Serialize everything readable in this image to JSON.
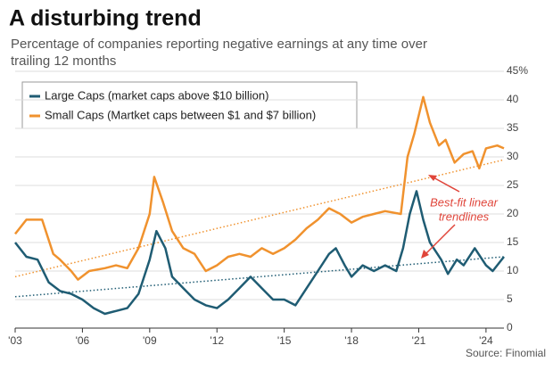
{
  "chart_data": {
    "type": "line",
    "title": "A disturbing trend",
    "subtitle": [
      "Percentage of companies reporting negative earnings at any time over",
      "trailing 12 months"
    ],
    "source": "Source: Finomial",
    "annotation": [
      "Best-fit linear",
      "trendlines"
    ],
    "xlim": [
      2003,
      2024.8
    ],
    "xticks": [
      {
        "value": 2003,
        "label": "'03"
      },
      {
        "value": 2006,
        "label": "'06"
      },
      {
        "value": 2009,
        "label": "'09"
      },
      {
        "value": 2012,
        "label": "'12"
      },
      {
        "value": 2015,
        "label": "'15"
      },
      {
        "value": 2018,
        "label": "'18"
      },
      {
        "value": 2021,
        "label": "'21"
      },
      {
        "value": 2024,
        "label": "'24"
      }
    ],
    "ylim": [
      0,
      45
    ],
    "yticks": [
      0,
      5,
      10,
      15,
      20,
      25,
      30,
      35,
      40,
      {
        "value": 45,
        "label": "45%"
      }
    ],
    "grid": true,
    "series": [
      {
        "name": "Large Caps (market caps above $10 billion)",
        "color": "#1f5c73",
        "x": [
          2003,
          2003.5,
          2004,
          2004.5,
          2005,
          2005.5,
          2006,
          2006.5,
          2007,
          2007.5,
          2008,
          2008.5,
          2009,
          2009.3,
          2009.7,
          2010,
          2010.5,
          2011,
          2011.5,
          2012,
          2012.5,
          2013,
          2013.5,
          2014,
          2014.5,
          2015,
          2015.5,
          2016,
          2016.5,
          2017,
          2017.3,
          2017.7,
          2018,
          2018.5,
          2019,
          2019.5,
          2020,
          2020.3,
          2020.6,
          2020.9,
          2021.2,
          2021.5,
          2022,
          2022.3,
          2022.7,
          2023,
          2023.5,
          2024,
          2024.3,
          2024.8
        ],
        "values": [
          15,
          12.5,
          12,
          8,
          6.5,
          6,
          5,
          3.5,
          2.5,
          3,
          3.5,
          6,
          12,
          17,
          14,
          9,
          7,
          5,
          4,
          3.5,
          5,
          7,
          9,
          7,
          5,
          5,
          4,
          7,
          10,
          13,
          14,
          11,
          9,
          11,
          10,
          11,
          10,
          14,
          20,
          24,
          19,
          15,
          12,
          9.5,
          12,
          11,
          14,
          11,
          10,
          12.5
        ]
      },
      {
        "name": "Small Caps (Martket caps between $1 and $7 billion)",
        "color": "#f0922e",
        "x": [
          2003,
          2003.5,
          2004.2,
          2004.7,
          2005,
          2005.5,
          2005.8,
          2006.3,
          2007,
          2007.5,
          2008,
          2008.5,
          2009,
          2009.2,
          2009.6,
          2010,
          2010.5,
          2011,
          2011.5,
          2012,
          2012.5,
          2013,
          2013.5,
          2014,
          2014.5,
          2015,
          2015.5,
          2016,
          2016.5,
          2017,
          2017.5,
          2018,
          2018.5,
          2019,
          2019.5,
          2020.2,
          2020.5,
          2020.8,
          2021.2,
          2021.5,
          2021.9,
          2022.2,
          2022.6,
          2023,
          2023.4,
          2023.7,
          2024,
          2024.5,
          2024.8
        ],
        "values": [
          16.5,
          19,
          19,
          13,
          12,
          10,
          8.5,
          10,
          10.5,
          11,
          10.5,
          14,
          20,
          26.5,
          22,
          17,
          14,
          13,
          10,
          11,
          12.5,
          13,
          12.5,
          14,
          13,
          14,
          15.5,
          17.5,
          19,
          21,
          20,
          18.5,
          19.5,
          20,
          20.5,
          20,
          30,
          34,
          40.5,
          36,
          32,
          33,
          29,
          30.5,
          31,
          28,
          31.5,
          32,
          31.5
        ]
      }
    ],
    "trendlines": [
      {
        "color": "#1f5c73",
        "values": [
          5.5,
          12.5
        ]
      },
      {
        "color": "#f0922e",
        "values": [
          9,
          29.5
        ]
      }
    ]
  }
}
